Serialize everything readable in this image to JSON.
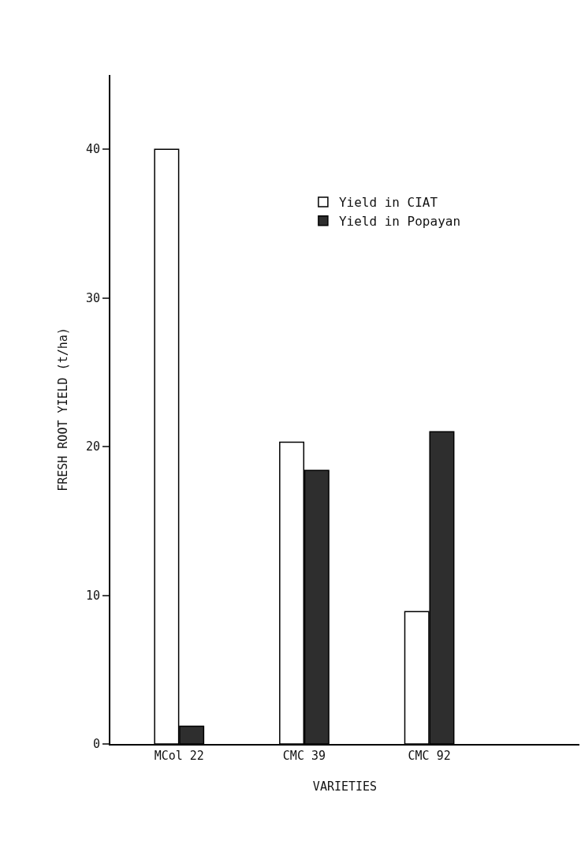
{
  "chart_data": {
    "type": "bar",
    "xlabel": "VARIETIES",
    "ylabel": "FRESH ROOT YIELD (t/ha)",
    "categories": [
      "MCol 22",
      "CMC 39",
      "CMC 92"
    ],
    "series": [
      {
        "name": "Yield in CIAT",
        "color": "#ffffff",
        "values": [
          40,
          20.3,
          8.9
        ]
      },
      {
        "name": "Yield in Popayan",
        "color": "#2e2e2e",
        "values": [
          1.2,
          18.4,
          21
        ]
      }
    ],
    "ylim": [
      0,
      45
    ],
    "yticks": [
      0,
      10,
      20,
      30,
      40
    ],
    "grid": false,
    "legend": "top right"
  }
}
